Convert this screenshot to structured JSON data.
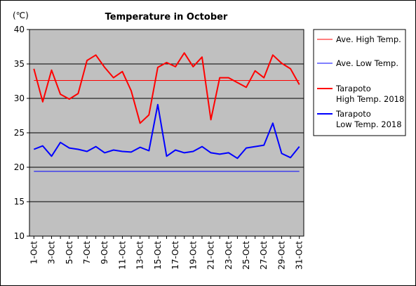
{
  "chart_data": {
    "type": "line",
    "title": "Temperature in October",
    "unit_label": "(℃)",
    "ylim": [
      10,
      40
    ],
    "y_ticks": [
      10,
      15,
      20,
      25,
      30,
      35,
      40
    ],
    "x": [
      "1-Oct",
      "2-Oct",
      "3-Oct",
      "4-Oct",
      "5-Oct",
      "6-Oct",
      "7-Oct",
      "8-Oct",
      "9-Oct",
      "10-Oct",
      "11-Oct",
      "12-Oct",
      "13-Oct",
      "14-Oct",
      "15-Oct",
      "16-Oct",
      "17-Oct",
      "18-Oct",
      "19-Oct",
      "20-Oct",
      "21-Oct",
      "22-Oct",
      "23-Oct",
      "24-Oct",
      "25-Oct",
      "26-Oct",
      "27-Oct",
      "28-Oct",
      "29-Oct",
      "30-Oct",
      "31-Oct"
    ],
    "x_tick_labels": [
      "1-Oct",
      "3-Oct",
      "5-Oct",
      "7-Oct",
      "9-Oct",
      "11-Oct",
      "13-Oct",
      "15-Oct",
      "17-Oct",
      "19-Oct",
      "21-Oct",
      "23-Oct",
      "25-Oct",
      "27-Oct",
      "29-Oct",
      "31-Oct"
    ],
    "grid": true,
    "plot_background": "#c0c0c0",
    "legend_position": "right",
    "series": [
      {
        "name": "Ave. High Temp.",
        "color": "#ff0000",
        "thin": true,
        "values": [
          32.6,
          32.6,
          32.6,
          32.6,
          32.6,
          32.6,
          32.6,
          32.6,
          32.6,
          32.6,
          32.6,
          32.6,
          32.6,
          32.6,
          32.6,
          32.6,
          32.6,
          32.6,
          32.6,
          32.6,
          32.6,
          32.6,
          32.6,
          32.6,
          32.6,
          32.6,
          32.6,
          32.6,
          32.6,
          32.6,
          32.6
        ]
      },
      {
        "name": "Ave. Low Temp.",
        "color": "#0000ff",
        "thin": true,
        "values": [
          19.4,
          19.4,
          19.4,
          19.4,
          19.4,
          19.4,
          19.4,
          19.4,
          19.4,
          19.4,
          19.4,
          19.4,
          19.4,
          19.4,
          19.4,
          19.4,
          19.4,
          19.4,
          19.4,
          19.4,
          19.4,
          19.4,
          19.4,
          19.4,
          19.4,
          19.4,
          19.4,
          19.4,
          19.4,
          19.4,
          19.4
        ]
      },
      {
        "name": "Tarapoto\nHigh Temp. 2018",
        "color": "#ff0000",
        "thin": false,
        "values": [
          34.3,
          29.5,
          34.1,
          30.6,
          29.9,
          30.7,
          35.5,
          36.3,
          34.5,
          33.0,
          33.9,
          31.1,
          26.4,
          27.6,
          34.5,
          35.2,
          34.6,
          36.6,
          34.6,
          36.0,
          26.9,
          33.0,
          33.0,
          32.3,
          31.6,
          34.0,
          33.0,
          36.3,
          35.1,
          34.3,
          32.0
        ]
      },
      {
        "name": "Tarapoto\nLow Temp. 2018",
        "color": "#0000ff",
        "thin": false,
        "values": [
          22.6,
          23.1,
          21.6,
          23.6,
          22.8,
          22.6,
          22.3,
          23.0,
          22.1,
          22.5,
          22.3,
          22.2,
          22.9,
          22.4,
          29.1,
          21.6,
          22.5,
          22.1,
          22.3,
          23.0,
          22.1,
          21.9,
          22.1,
          21.3,
          22.8,
          23.0,
          23.2,
          26.4,
          22.0,
          21.4,
          23.0
        ]
      }
    ]
  }
}
